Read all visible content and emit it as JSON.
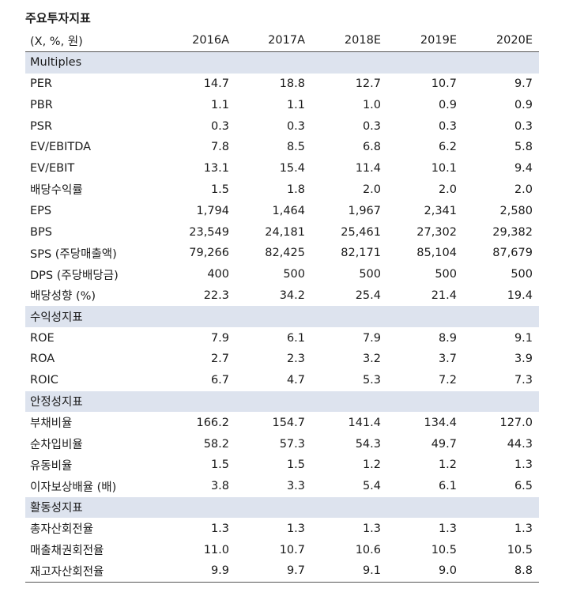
{
  "title": "주요투자지표",
  "unit_label": "(X, %, 원)",
  "columns": [
    "2016A",
    "2017A",
    "2018E",
    "2019E",
    "2020E"
  ],
  "sections": [
    {
      "name": "Multiples",
      "rows": [
        {
          "label": "PER",
          "values": [
            "14.7",
            "18.8",
            "12.7",
            "10.7",
            "9.7"
          ]
        },
        {
          "label": "PBR",
          "values": [
            "1.1",
            "1.1",
            "1.0",
            "0.9",
            "0.9"
          ]
        },
        {
          "label": "PSR",
          "values": [
            "0.3",
            "0.3",
            "0.3",
            "0.3",
            "0.3"
          ]
        },
        {
          "label": "EV/EBITDA",
          "values": [
            "7.8",
            "8.5",
            "6.8",
            "6.2",
            "5.8"
          ]
        },
        {
          "label": "EV/EBIT",
          "values": [
            "13.1",
            "15.4",
            "11.4",
            "10.1",
            "9.4"
          ]
        },
        {
          "label": "배당수익률",
          "values": [
            "1.5",
            "1.8",
            "2.0",
            "2.0",
            "2.0"
          ]
        },
        {
          "label": "EPS",
          "values": [
            "1,794",
            "1,464",
            "1,967",
            "2,341",
            "2,580"
          ]
        },
        {
          "label": "BPS",
          "values": [
            "23,549",
            "24,181",
            "25,461",
            "27,302",
            "29,382"
          ]
        },
        {
          "label": "SPS (주당매출액)",
          "values": [
            "79,266",
            "82,425",
            "82,171",
            "85,104",
            "87,679"
          ]
        },
        {
          "label": "DPS (주당배당금)",
          "values": [
            "400",
            "500",
            "500",
            "500",
            "500"
          ]
        },
        {
          "label": "배당성향 (%)",
          "values": [
            "22.3",
            "34.2",
            "25.4",
            "21.4",
            "19.4"
          ]
        }
      ]
    },
    {
      "name": "수익성지표",
      "rows": [
        {
          "label": "ROE",
          "values": [
            "7.9",
            "6.1",
            "7.9",
            "8.9",
            "9.1"
          ]
        },
        {
          "label": "ROA",
          "values": [
            "2.7",
            "2.3",
            "3.2",
            "3.7",
            "3.9"
          ]
        },
        {
          "label": "ROIC",
          "values": [
            "6.7",
            "4.7",
            "5.3",
            "7.2",
            "7.3"
          ]
        }
      ]
    },
    {
      "name": "안정성지표",
      "rows": [
        {
          "label": "부채비율",
          "values": [
            "166.2",
            "154.7",
            "141.4",
            "134.4",
            "127.0"
          ]
        },
        {
          "label": "순차입비율",
          "values": [
            "58.2",
            "57.3",
            "54.3",
            "49.7",
            "44.3"
          ]
        },
        {
          "label": "유동비율",
          "values": [
            "1.5",
            "1.5",
            "1.2",
            "1.2",
            "1.3"
          ]
        },
        {
          "label": "이자보상배율 (배)",
          "values": [
            "3.8",
            "3.3",
            "5.4",
            "6.1",
            "6.5"
          ]
        }
      ]
    },
    {
      "name": "활동성지표",
      "rows": [
        {
          "label": "총자산회전율",
          "values": [
            "1.3",
            "1.3",
            "1.3",
            "1.3",
            "1.3"
          ]
        },
        {
          "label": "매출채권회전율",
          "values": [
            "11.0",
            "10.7",
            "10.6",
            "10.5",
            "10.5"
          ]
        },
        {
          "label": "재고자산회전율",
          "values": [
            "9.9",
            "9.7",
            "9.1",
            "9.0",
            "8.8"
          ]
        }
      ]
    }
  ]
}
